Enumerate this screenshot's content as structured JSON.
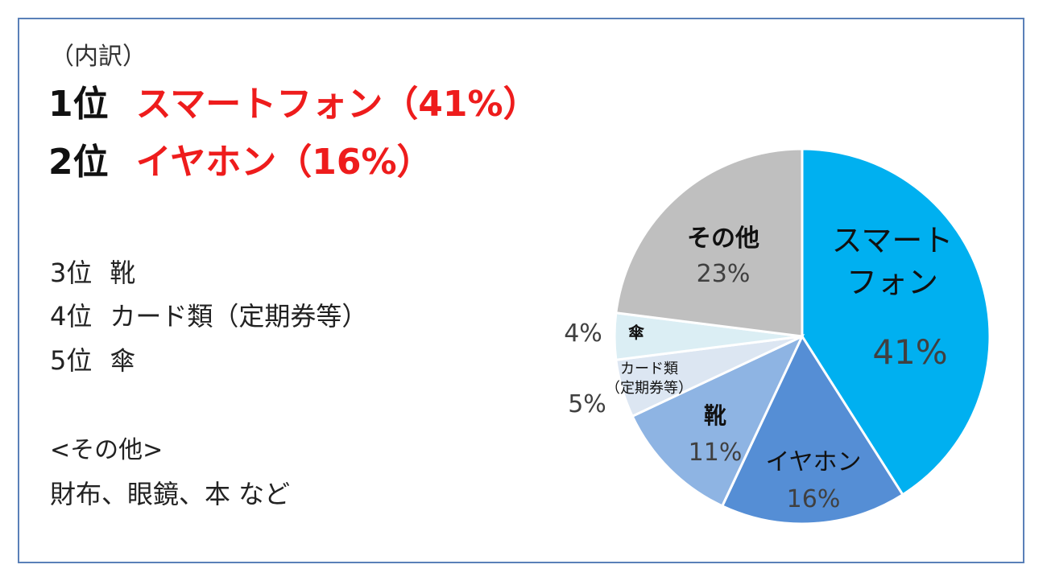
{
  "header": {
    "label": "（内訳）"
  },
  "rank1": {
    "rank": "1位",
    "item": "スマートフォン（41%）"
  },
  "rank2": {
    "rank": "2位",
    "item": "イヤホン（16%）"
  },
  "rank3": {
    "rank": "3位",
    "item": "靴"
  },
  "rank4": {
    "rank": "4位",
    "item": "カード類（定期券等）"
  },
  "rank5": {
    "rank": "5位",
    "item": "傘"
  },
  "other": {
    "heading": "<その他>",
    "items": "財布、眼鏡、本 など"
  },
  "colors": {
    "accent_red": "#ee1c1c",
    "frame": "#5a80b8"
  },
  "chart_data": {
    "type": "pie",
    "start": "12 o'clock, clockwise",
    "slices": [
      {
        "label": "スマートフォン",
        "label_lines": [
          "スマート",
          "フォン"
        ],
        "pct_text": "41%",
        "value": 41,
        "color": "#00b0f0",
        "pct_color": "#404040"
      },
      {
        "label": "イヤホン",
        "label_lines": [
          "イヤホン"
        ],
        "pct_text": "16%",
        "value": 16,
        "color": "#558ed5",
        "pct_color": "#404040"
      },
      {
        "label": "靴",
        "label_lines": [
          "靴"
        ],
        "pct_text": "11%",
        "value": 11,
        "color": "#8eb4e3",
        "pct_color": "#404040"
      },
      {
        "label": "カード類（定期券等）",
        "label_lines": [
          "カード類",
          "（定期券等）"
        ],
        "pct_text": "5%",
        "value": 5,
        "color": "#dce6f2",
        "pct_color": "#404040"
      },
      {
        "label": "傘",
        "label_lines": [
          "傘"
        ],
        "pct_text": "4%",
        "value": 4,
        "color": "#dbeef4",
        "pct_color": "#404040"
      },
      {
        "label": "その他",
        "label_lines": [
          "その他"
        ],
        "pct_text": "23%",
        "value": 23,
        "color": "#bfbfbf",
        "pct_color": "#404040"
      }
    ]
  }
}
